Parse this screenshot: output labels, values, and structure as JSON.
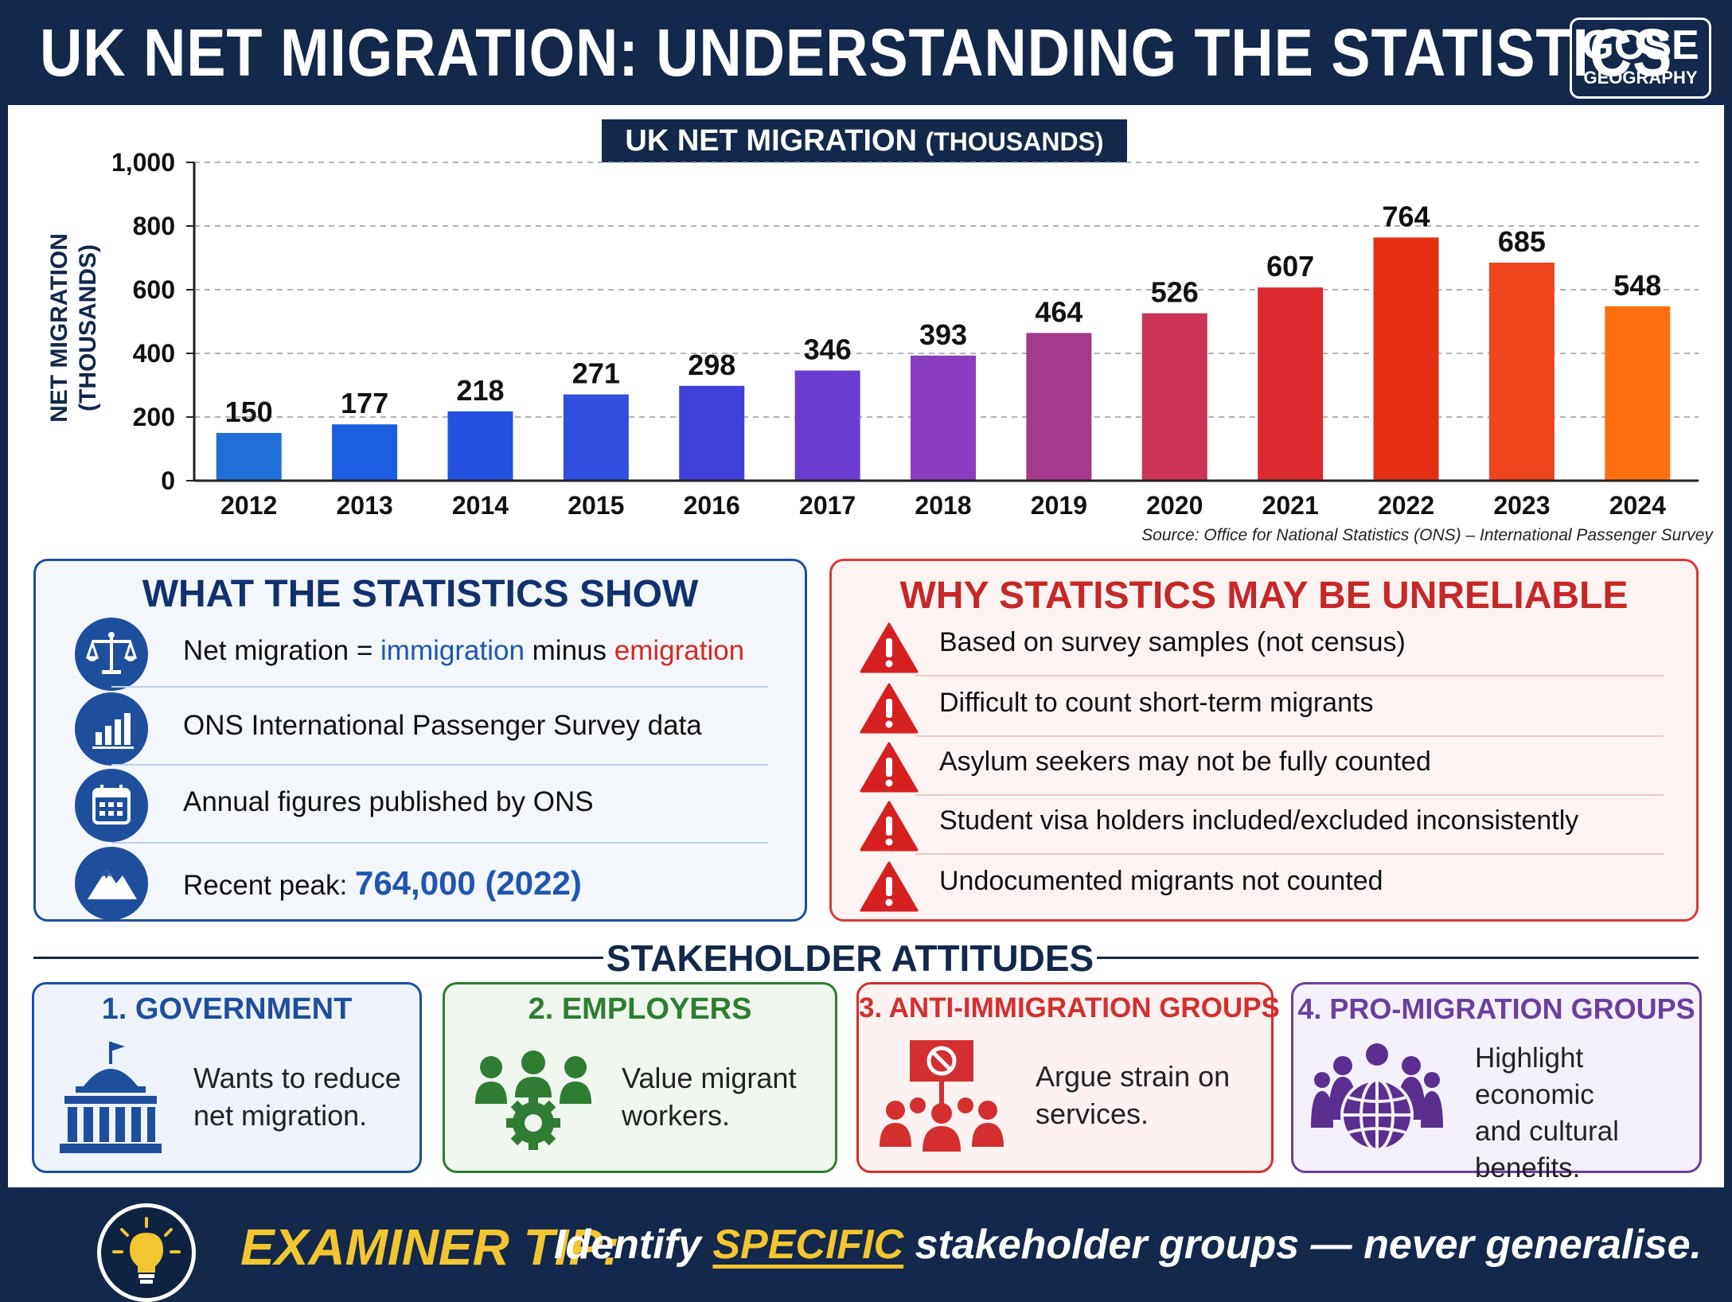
{
  "header": {
    "title": "UK NET MIGRATION: UNDERSTANDING THE STATISTICS",
    "badge_line1": "GCSE",
    "badge_line2": "GEOGRAPHY"
  },
  "chart_data": {
    "type": "bar",
    "title": "UK NET MIGRATION",
    "title_suffix": "(THOUSANDS)",
    "ylabel_line1": "NET MIGRATION",
    "ylabel_line2": "(THOUSANDS)",
    "xlabel": "",
    "categories": [
      "2012",
      "2013",
      "2014",
      "2015",
      "2016",
      "2017",
      "2018",
      "2019",
      "2020",
      "2021",
      "2022",
      "2023",
      "2024"
    ],
    "values": [
      150,
      177,
      218,
      271,
      298,
      346,
      393,
      464,
      526,
      607,
      764,
      685,
      548
    ],
    "value_labels": [
      "150",
      "177",
      "218",
      "271",
      "298",
      "346",
      "393",
      "464",
      "526",
      "607",
      "764",
      "685",
      "548"
    ],
    "ylim": [
      0,
      1000
    ],
    "yticks": [
      0,
      200,
      400,
      600,
      800,
      1000
    ],
    "ytick_labels": [
      "0",
      "200",
      "400",
      "600",
      "800",
      "1,000"
    ],
    "grid": "horizontal dashed",
    "bar_colors": [
      "#1f6fd6",
      "#1b5ee0",
      "#2352de",
      "#2f4fdc",
      "#4141d8",
      "#6a3ccf",
      "#8a3bbf",
      "#a7398c",
      "#c93456",
      "#dd2a2e",
      "#e52e12",
      "#f0441c",
      "#ff6f12"
    ],
    "source": "Source: Office for National Statistics (ONS) – International Passenger Survey"
  },
  "stats_show": {
    "title": "WHAT THE STATISTICS SHOW",
    "item1_prefix": "Net migration = ",
    "item1_word1": "immigration",
    "item1_mid": " minus ",
    "item1_word2": "emigration",
    "item2": "ONS International Passenger Survey data",
    "item3": "Annual figures published by ONS",
    "item4_prefix": "Recent peak: ",
    "item4_value": "764,000 (2022)",
    "icons": [
      "scales-icon",
      "bar-chart-icon",
      "calendar-icon",
      "mountain-peak-icon"
    ]
  },
  "unreliable": {
    "title": "WHY STATISTICS MAY BE UNRELIABLE",
    "items": [
      "Based on survey samples (not census)",
      "Difficult to count short-term migrants",
      "Asylum seekers may not be fully counted",
      "Student visa holders included/excluded inconsistently",
      "Undocumented migrants not counted"
    ],
    "icon": "warning-icon"
  },
  "stakeholders": {
    "title": "STAKEHOLDER ATTITUDES",
    "cards": [
      {
        "title": "1. GOVERNMENT",
        "line1": "Wants to reduce",
        "line2": "net migration.",
        "line3": "",
        "color": "#1e4f9c",
        "icon": "government-building-icon"
      },
      {
        "title": "2. EMPLOYERS",
        "line1": "Value migrant",
        "line2": "workers.",
        "line3": "",
        "color": "#2e7d32",
        "icon": "workers-gear-icon"
      },
      {
        "title": "3. ANTI-IMMIGRATION GROUPS",
        "line1": "Argue strain on",
        "line2": "services.",
        "line3": "",
        "color": "#d32f2f",
        "icon": "protest-sign-icon"
      },
      {
        "title": "4. PRO-MIGRATION GROUPS",
        "line1": "Highlight economic",
        "line2": "and cultural",
        "line3": "benefits.",
        "color": "#6a3fa0",
        "icon": "people-globe-icon"
      }
    ]
  },
  "tip": {
    "label": "EXAMINER TIP:",
    "text_before": "Identify ",
    "emphasis": "SPECIFIC",
    "text_after": " stakeholder groups — never generalise.",
    "icon": "lightbulb-icon"
  }
}
